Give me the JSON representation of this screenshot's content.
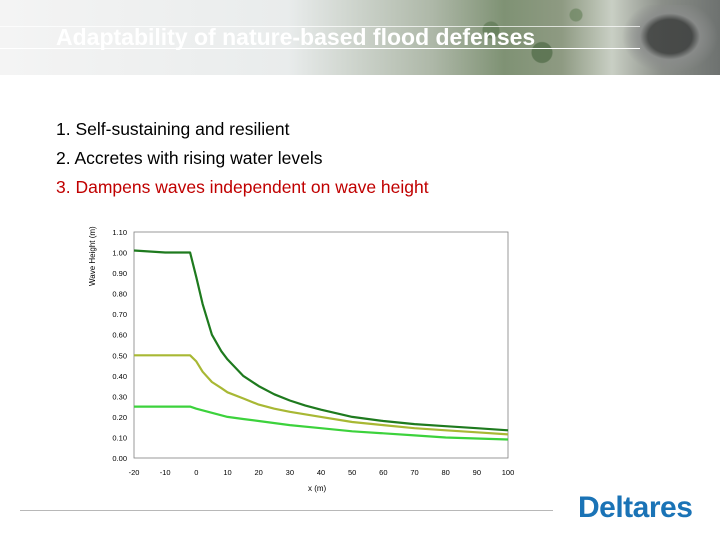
{
  "header": {
    "title": "Adaptability of nature-based flood defenses"
  },
  "bullets": [
    "1. Self-sustaining and resilient",
    "2. Accretes with rising water levels",
    "3. Dampens waves independent on wave height"
  ],
  "colors": {
    "highlight": "#c00000",
    "series_dark": "#1e7a1e",
    "series_olive": "#a8b834",
    "series_light": "#3cd23c",
    "logo": "#1a73b6"
  },
  "logo": {
    "text": "Deltares"
  },
  "chart_data": {
    "type": "line",
    "xlabel": "x (m)",
    "ylabel": "Wave Height (m)",
    "xlim": [
      -20,
      100
    ],
    "ylim": [
      0,
      1.1
    ],
    "xticks": [
      "-20",
      "-10",
      "0",
      "10",
      "20",
      "30",
      "40",
      "50",
      "60",
      "70",
      "80",
      "90",
      "100"
    ],
    "yticks": [
      "0.00",
      "0.10",
      "0.20",
      "0.30",
      "0.40",
      "0.50",
      "0.60",
      "0.70",
      "0.80",
      "0.90",
      "1.00",
      "1.10"
    ],
    "series": [
      {
        "color": "#1e7a1e",
        "x": [
          -20,
          -15,
          -10,
          -5,
          -2,
          0,
          2,
          5,
          8,
          10,
          15,
          20,
          25,
          30,
          35,
          40,
          50,
          60,
          70,
          80,
          90,
          100
        ],
        "y": [
          1.01,
          1.005,
          1.0,
          1.0,
          1.0,
          0.88,
          0.75,
          0.6,
          0.52,
          0.48,
          0.4,
          0.35,
          0.31,
          0.28,
          0.255,
          0.235,
          0.2,
          0.18,
          0.165,
          0.155,
          0.145,
          0.135
        ]
      },
      {
        "color": "#a8b834",
        "x": [
          -20,
          -15,
          -10,
          -5,
          -2,
          0,
          2,
          5,
          8,
          10,
          15,
          20,
          25,
          30,
          40,
          50,
          60,
          70,
          80,
          90,
          100
        ],
        "y": [
          0.5,
          0.5,
          0.5,
          0.5,
          0.5,
          0.47,
          0.42,
          0.37,
          0.34,
          0.32,
          0.29,
          0.26,
          0.24,
          0.225,
          0.2,
          0.175,
          0.16,
          0.145,
          0.135,
          0.125,
          0.115
        ]
      },
      {
        "color": "#3cd23c",
        "x": [
          -20,
          -15,
          -10,
          -5,
          -2,
          0,
          5,
          10,
          15,
          20,
          30,
          40,
          50,
          60,
          70,
          80,
          90,
          100
        ],
        "y": [
          0.25,
          0.25,
          0.25,
          0.25,
          0.25,
          0.24,
          0.22,
          0.2,
          0.19,
          0.18,
          0.16,
          0.145,
          0.13,
          0.12,
          0.11,
          0.1,
          0.095,
          0.09
        ]
      }
    ]
  }
}
